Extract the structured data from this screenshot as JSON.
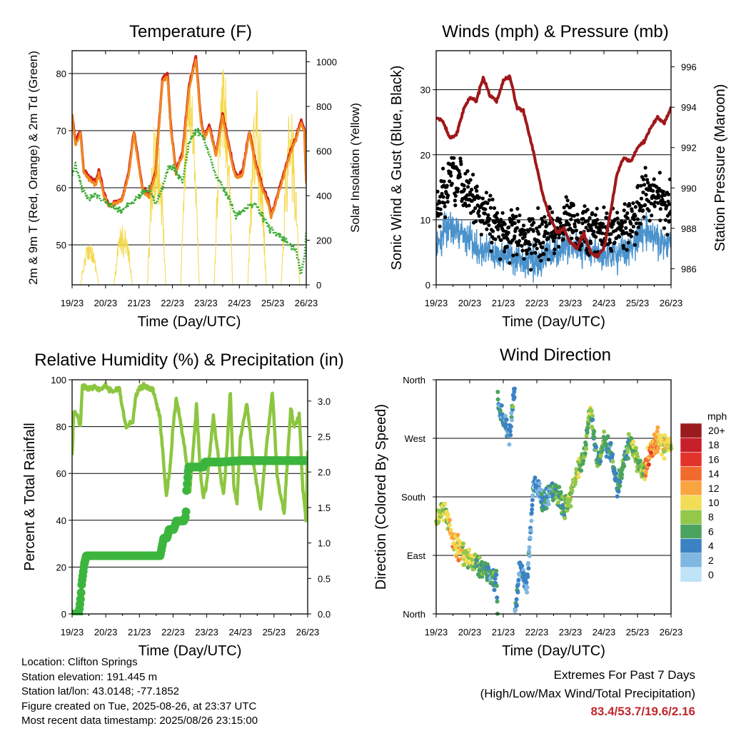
{
  "chart_data": [
    {
      "type": "line",
      "title": "Temperature (F)",
      "xlabel": "Time (Day/UTC)",
      "ylabel_left": "2m & 9m T (Red, Orange) & 2m Td (Green)",
      "ylabel_right": "Solar Insolation (Yellow)",
      "x_ticks": [
        "19/23",
        "20/23",
        "21/23",
        "22/23",
        "23/23",
        "24/23",
        "25/23",
        "26/23"
      ],
      "xlim": [
        0,
        7
      ],
      "ylim_left": [
        43,
        84
      ],
      "yticks_left": [
        "50",
        "60",
        "70",
        "80"
      ],
      "ylim_right": [
        0,
        1050
      ],
      "yticks_right": [
        "0",
        "200",
        "400",
        "600",
        "800",
        "1000"
      ],
      "series": [
        {
          "name": "2m T",
          "color": "#d42020",
          "x": [
            0,
            0.1,
            0.25,
            0.35,
            0.5,
            0.7,
            0.8,
            0.95,
            1.1,
            1.3,
            1.5,
            1.7,
            1.85,
            1.95,
            2.1,
            2.3,
            2.5,
            2.7,
            2.85,
            2.95,
            3.1,
            3.3,
            3.5,
            3.7,
            3.85,
            3.95,
            4.1,
            4.3,
            4.5,
            4.7,
            4.85,
            4.95,
            5.1,
            5.3,
            5.5,
            5.7,
            5.85,
            5.95,
            6.1,
            6.3,
            6.5,
            6.7,
            6.85,
            6.95,
            7
          ],
          "y": [
            73,
            68,
            70,
            63,
            62,
            61,
            63,
            59,
            57,
            57.5,
            58,
            63,
            70,
            66,
            60,
            59,
            63,
            79,
            80,
            71,
            63,
            66,
            78,
            83,
            72,
            69,
            71,
            66,
            73,
            67,
            63,
            62,
            63,
            70,
            64,
            60,
            58,
            55,
            58,
            62,
            66,
            69,
            72,
            70,
            61
          ]
        },
        {
          "name": "9m T",
          "color": "#f08a20",
          "x": [
            0,
            0.1,
            0.25,
            0.35,
            0.5,
            0.7,
            0.8,
            0.95,
            1.1,
            1.3,
            1.5,
            1.7,
            1.85,
            1.95,
            2.1,
            2.3,
            2.5,
            2.7,
            2.85,
            2.95,
            3.1,
            3.3,
            3.5,
            3.7,
            3.85,
            3.95,
            4.1,
            4.3,
            4.5,
            4.7,
            4.85,
            4.95,
            5.1,
            5.3,
            5.5,
            5.7,
            5.85,
            5.95,
            6.1,
            6.3,
            6.5,
            6.7,
            6.85,
            6.95,
            7
          ],
          "y": [
            72.5,
            67.5,
            69.5,
            62.5,
            61.5,
            60.5,
            62.5,
            58.5,
            56.8,
            57.3,
            57.8,
            62.5,
            69.5,
            65.5,
            59.5,
            58.5,
            62.5,
            78.5,
            79.5,
            70.5,
            62.5,
            65.5,
            77.5,
            82.5,
            71.5,
            68.5,
            70.5,
            65.5,
            72.5,
            66.5,
            62.5,
            61.5,
            62.5,
            69.5,
            63.5,
            59.5,
            57.5,
            54.8,
            57.5,
            61.5,
            65.5,
            68.5,
            71.5,
            69.5,
            60.5
          ]
        },
        {
          "name": "2m Td",
          "color": "#3aaa35",
          "x": [
            0,
            0.1,
            0.3,
            0.5,
            0.7,
            0.9,
            1.1,
            1.3,
            1.5,
            1.7,
            1.9,
            2.1,
            2.3,
            2.5,
            2.7,
            2.9,
            3.1,
            3.3,
            3.5,
            3.7,
            3.9,
            4.1,
            4.3,
            4.5,
            4.7,
            4.9,
            5.1,
            5.3,
            5.5,
            5.7,
            5.9,
            6.1,
            6.3,
            6.5,
            6.7,
            6.85,
            6.95,
            7
          ],
          "y": [
            62,
            64,
            60,
            58,
            59,
            58,
            57,
            56.5,
            56,
            57,
            58,
            59,
            60,
            57,
            60,
            64,
            63,
            61,
            68,
            70,
            69,
            66,
            62,
            60,
            58,
            55,
            56,
            57,
            57,
            55,
            53,
            52,
            51,
            50,
            49,
            45,
            48,
            52
          ]
        }
      ],
      "solar": {
        "name": "Solar Insolation",
        "color": "#f5d84a",
        "days": [
          {
            "peak": 200,
            "noise": 0.45
          },
          {
            "peak": 300,
            "noise": 0.6
          },
          {
            "peak": 790,
            "noise": 0.55
          },
          {
            "peak": 960,
            "noise": 0.35
          },
          {
            "peak": 1010,
            "noise": 0.45
          },
          {
            "peak": 900,
            "noise": 0.6
          },
          {
            "peak": 820,
            "noise": 0.55
          }
        ]
      }
    },
    {
      "type": "line",
      "title": "Winds (mph) & Pressure (mb)",
      "xlabel": "Time (Day/UTC)",
      "ylabel_left": "Sonic Wind & Gust (Blue, Black)",
      "ylabel_right": "Station Pressure (Maroon)",
      "x_ticks": [
        "19/23",
        "20/23",
        "21/23",
        "22/23",
        "23/23",
        "24/23",
        "25/23",
        "26/23"
      ],
      "xlim": [
        0,
        7
      ],
      "ylim_left": [
        0,
        36
      ],
      "yticks_left": [
        "0",
        "10",
        "20",
        "30"
      ],
      "ylim_right": [
        985.2,
        996.8
      ],
      "yticks_right": [
        "986",
        "988",
        "990",
        "992",
        "994",
        "996"
      ],
      "series": [
        {
          "name": "Station Pressure",
          "color": "#a0181a",
          "x": [
            0,
            0.2,
            0.4,
            0.6,
            0.8,
            1.0,
            1.2,
            1.4,
            1.6,
            1.8,
            2.0,
            2.2,
            2.4,
            2.6,
            2.8,
            3.0,
            3.2,
            3.4,
            3.6,
            3.8,
            4.0,
            4.2,
            4.4,
            4.6,
            4.8,
            5.0,
            5.2,
            5.4,
            5.6,
            5.8,
            6.0,
            6.2,
            6.4,
            6.6,
            6.8,
            7.0
          ],
          "y": [
            993.5,
            993.3,
            992.5,
            992.6,
            993.8,
            994.5,
            994.3,
            995.5,
            994.6,
            994.3,
            995.3,
            995.5,
            994.0,
            993.8,
            992.5,
            991.0,
            989.5,
            988.5,
            987.8,
            988.0,
            987.3,
            987.0,
            987.8,
            986.8,
            986.6,
            987.0,
            988.8,
            990.8,
            991.5,
            991.3,
            992.0,
            992.3,
            993.0,
            993.5,
            993.2,
            994.0
          ]
        },
        {
          "name": "Sonic Wind",
          "color": "#4a92cc",
          "mean": [
            6,
            9,
            8,
            6,
            5,
            4.5,
            4,
            3.5,
            4,
            5,
            6,
            5.5,
            5,
            4.5,
            5,
            6,
            8,
            7,
            6
          ]
        },
        {
          "name": "Gust",
          "color": "#000000",
          "mean": [
            11,
            16,
            15,
            13,
            10,
            8.5,
            8,
            7,
            7.5,
            8.5,
            10,
            9,
            8.5,
            8,
            9,
            10,
            14,
            13,
            11
          ]
        }
      ]
    },
    {
      "type": "line",
      "title": "Relative Humidity (%) & Precipitation (in)",
      "xlabel": "Time (Day/UTC)",
      "ylabel_left": "Percent & Total Rainfall",
      "x_ticks": [
        "19/23",
        "20/23",
        "21/23",
        "22/23",
        "23/23",
        "24/23",
        "25/23",
        "26/23"
      ],
      "xlim": [
        0,
        7
      ],
      "ylim_left": [
        0,
        100
      ],
      "yticks_left": [
        "0",
        "20",
        "40",
        "60",
        "80",
        "100"
      ],
      "ylim_right": [
        0,
        3.3
      ],
      "yticks_right": [
        "0.0",
        "0.5",
        "1.0",
        "1.5",
        "2.0",
        "2.5",
        "3.0"
      ],
      "series": [
        {
          "name": "Relative Humidity",
          "color": "#8cc63f",
          "x": [
            0,
            0.05,
            0.15,
            0.25,
            0.3,
            0.4,
            0.5,
            0.6,
            0.8,
            1.0,
            1.2,
            1.4,
            1.6,
            1.8,
            1.9,
            2.0,
            2.2,
            2.4,
            2.6,
            2.8,
            2.9,
            3.0,
            3.1,
            3.3,
            3.5,
            3.6,
            3.7,
            3.8,
            3.9,
            4.0,
            4.2,
            4.4,
            4.5,
            4.6,
            4.7,
            4.8,
            4.9,
            5.0,
            5.2,
            5.4,
            5.6,
            5.8,
            5.95,
            6.1,
            6.3,
            6.5,
            6.6,
            6.75,
            6.85,
            6.95,
            7.0
          ],
          "y": [
            68,
            87,
            85,
            80,
            97,
            97,
            96,
            97,
            96,
            97,
            95,
            96,
            80,
            82,
            93,
            97,
            97,
            96,
            85,
            50,
            60,
            80,
            92,
            75,
            53,
            70,
            90,
            62,
            50,
            55,
            85,
            60,
            50,
            70,
            95,
            55,
            48,
            75,
            90,
            63,
            45,
            75,
            95,
            58,
            43,
            88,
            80,
            85,
            55,
            40,
            70
          ]
        },
        {
          "name": "Total Precipitation",
          "color": "#3cb53f",
          "steps": [
            [
              0,
              0
            ],
            [
              0.2,
              0
            ],
            [
              0.26,
              0.25
            ],
            [
              0.28,
              0.4
            ],
            [
              0.32,
              0.55
            ],
            [
              0.36,
              0.7
            ],
            [
              0.42,
              0.82
            ],
            [
              2.35,
              0.82
            ],
            [
              2.62,
              0.82
            ],
            [
              2.66,
              0.92
            ],
            [
              2.72,
              1.07
            ],
            [
              2.82,
              1.07
            ],
            [
              2.88,
              1.19
            ],
            [
              3.02,
              1.19
            ],
            [
              3.1,
              1.31
            ],
            [
              3.32,
              1.31
            ],
            [
              3.38,
              1.38
            ],
            [
              3.4,
              1.74
            ],
            [
              3.46,
              2.07
            ],
            [
              3.9,
              2.07
            ],
            [
              3.95,
              2.14
            ],
            [
              4.1,
              2.14
            ],
            [
              4.4,
              2.14
            ],
            [
              5.0,
              2.16
            ],
            [
              7.0,
              2.16
            ]
          ]
        }
      ]
    },
    {
      "type": "scatter",
      "title": "Wind Direction",
      "xlabel": "Time (Day/UTC)",
      "ylabel_left": "Direction (Colored By Speed)",
      "x_ticks": [
        "19/23",
        "20/23",
        "21/23",
        "22/23",
        "23/23",
        "24/23",
        "25/23",
        "26/23"
      ],
      "xlim": [
        0,
        7
      ],
      "ylim_left": [
        0,
        360
      ],
      "yticks_left": [
        "North",
        "East",
        "South",
        "West",
        "North"
      ],
      "direction_track": {
        "x": [
          0,
          0.15,
          0.3,
          0.5,
          0.7,
          1.0,
          1.3,
          1.6,
          1.8,
          1.85,
          2.0,
          2.2,
          2.5,
          2.7,
          2.9,
          3.0,
          3.2,
          3.4,
          3.6,
          3.8,
          3.9,
          4.0,
          4.2,
          4.4,
          4.6,
          4.8,
          5.0,
          5.2,
          5.4,
          5.6,
          5.8,
          6.0,
          6.2,
          6.4,
          6.6,
          6.8,
          7.0
        ],
        "deg": [
          140,
          160,
          155,
          110,
          100,
          85,
          70,
          60,
          50,
          320,
          300,
          270,
          80,
          40,
          200,
          195,
          170,
          190,
          190,
          160,
          170,
          180,
          220,
          240,
          320,
          230,
          260,
          250,
          190,
          240,
          270,
          230,
          220,
          250,
          270,
          260,
          260
        ]
      },
      "legend": {
        "title": "mph",
        "labels": [
          "20+",
          "18",
          "16",
          "14",
          "12",
          "10",
          "8",
          "6",
          "4",
          "2",
          "0"
        ],
        "colors": [
          "#9a1b1e",
          "#c8202a",
          "#e2332a",
          "#f26a2e",
          "#f9a53f",
          "#f3dd57",
          "#93c84a",
          "#4aa35f",
          "#3b82c4",
          "#7fb7e1",
          "#bfe3f7"
        ]
      }
    }
  ],
  "station": {
    "location": "Location: Clifton Springs",
    "elevation": "Station elevation: 191.445 m",
    "latlon": "Station lat/lon: 43.0148; -77.1852",
    "created": "Figure created on Tue, 2025-08-26, at 23:37 UTC",
    "recent": "Most recent data timestamp: 2025/08/26 23:15:00"
  },
  "extremes": {
    "title": "Extremes For Past 7 Days",
    "subtitle": "(High/Low/Max Wind/Total Precipitation)",
    "values": "83.4/53.7/19.6/2.16"
  }
}
